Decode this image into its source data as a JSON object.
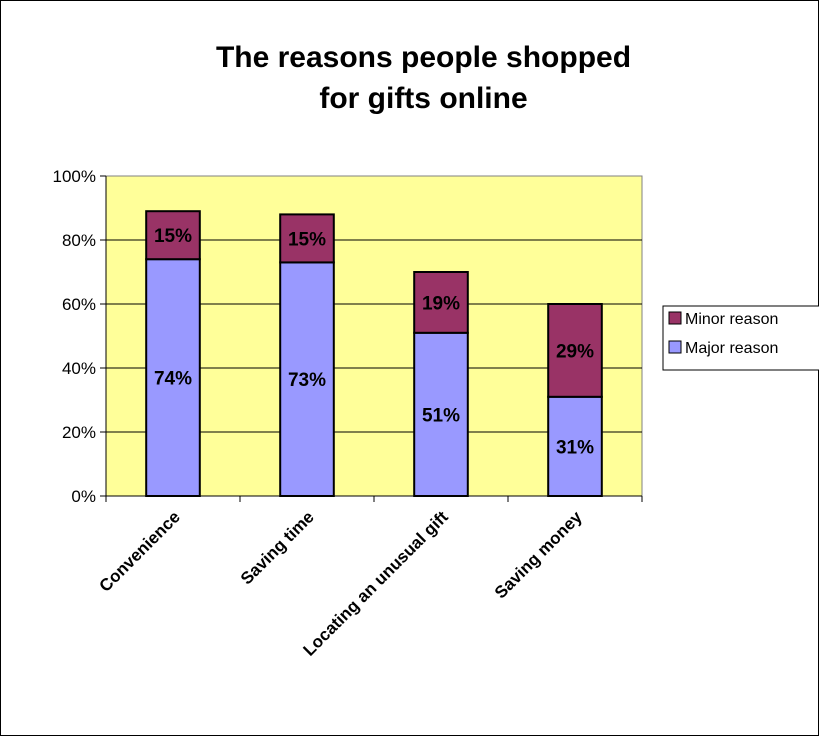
{
  "chart_data": {
    "type": "stacked-bar",
    "title_lines": [
      "The reasons people shopped",
      "for gifts online"
    ],
    "categories": [
      "Convenience",
      "Saving time",
      "Locating an unusual gift",
      "Saving money"
    ],
    "series": [
      {
        "name": "Major reason",
        "values": [
          74,
          73,
          51,
          31
        ],
        "labels": [
          "74%",
          "73%",
          "51%",
          "31%"
        ],
        "color": "#9999ff"
      },
      {
        "name": "Minor reason",
        "values": [
          15,
          15,
          19,
          29
        ],
        "labels": [
          "15%",
          "15%",
          "19%",
          "29%"
        ],
        "color": "#993366"
      }
    ],
    "ylim": [
      0,
      100
    ],
    "yticks": [
      0,
      20,
      40,
      60,
      80,
      100
    ],
    "ytick_labels": [
      "0%",
      "20%",
      "40%",
      "60%",
      "80%",
      "100%"
    ],
    "legend": [
      {
        "name": "Minor reason",
        "color": "#993366"
      },
      {
        "name": "Major reason",
        "color": "#9999ff"
      }
    ],
    "legend_position": "right",
    "grid": true,
    "plot_background": "#ffff99"
  }
}
